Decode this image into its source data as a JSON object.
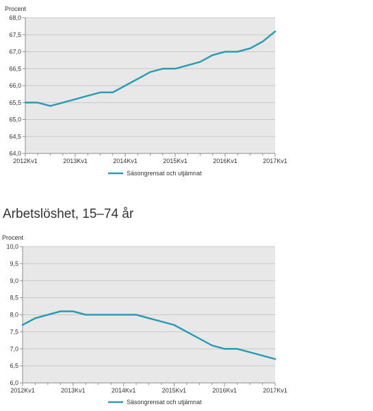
{
  "section2_title": "Arbetslöshet, 15–74 år",
  "colors": {
    "line": "#2a9bb5",
    "plot_bg": "#e8e8e8",
    "grid": "#c8c8c8",
    "axis": "#8c8c8c"
  },
  "chart_data": [
    {
      "type": "line",
      "ylabel": "Procent",
      "ylim": [
        64.0,
        68.0
      ],
      "yticks": [
        "64,0",
        "64,5",
        "65,0",
        "65,5",
        "66,0",
        "66,5",
        "67,0",
        "67,5",
        "68,0"
      ],
      "xticks": [
        "2012Kv1",
        "2013Kv1",
        "2014Kv1",
        "2015Kv1",
        "2016Kv1",
        "2017Kv1"
      ],
      "x": [
        "2012Kv1",
        "2012Kv2",
        "2012Kv3",
        "2012Kv4",
        "2013Kv1",
        "2013Kv2",
        "2013Kv3",
        "2013Kv4",
        "2014Kv1",
        "2014Kv2",
        "2014Kv3",
        "2014Kv4",
        "2015Kv1",
        "2015Kv2",
        "2015Kv3",
        "2015Kv4",
        "2016Kv1",
        "2016Kv2",
        "2016Kv3",
        "2016Kv4",
        "2017Kv1"
      ],
      "grid": true,
      "legend_position": "bottom",
      "series": [
        {
          "name": "Säsongrensat och utjämnat",
          "values": [
            65.5,
            65.5,
            65.4,
            65.5,
            65.6,
            65.7,
            65.8,
            65.8,
            66.0,
            66.2,
            66.4,
            66.5,
            66.5,
            66.6,
            66.7,
            66.9,
            67.0,
            67.0,
            67.1,
            67.3,
            67.6
          ]
        }
      ]
    },
    {
      "type": "line",
      "ylabel": "Procent",
      "ylim": [
        6.0,
        10.0
      ],
      "yticks": [
        "6,0",
        "6,5",
        "7,0",
        "7,5",
        "8,0",
        "8,5",
        "9,0",
        "9,5",
        "10,0"
      ],
      "xticks": [
        "2012Kv1",
        "2013Kv1",
        "2014Kv1",
        "2015Kv1",
        "2016Kv1",
        "2017Kv1"
      ],
      "x": [
        "2012Kv1",
        "2012Kv2",
        "2012Kv3",
        "2012Kv4",
        "2013Kv1",
        "2013Kv2",
        "2013Kv3",
        "2013Kv4",
        "2014Kv1",
        "2014Kv2",
        "2014Kv3",
        "2014Kv4",
        "2015Kv1",
        "2015Kv2",
        "2015Kv3",
        "2015Kv4",
        "2016Kv1",
        "2016Kv2",
        "2016Kv3",
        "2016Kv4",
        "2017Kv1"
      ],
      "grid": true,
      "legend_position": "bottom",
      "series": [
        {
          "name": "Säsongrensat och utjämnat",
          "values": [
            7.7,
            7.9,
            8.0,
            8.1,
            8.1,
            8.0,
            8.0,
            8.0,
            8.0,
            8.0,
            7.9,
            7.8,
            7.7,
            7.5,
            7.3,
            7.1,
            7.0,
            7.0,
            6.9,
            6.8,
            6.7
          ]
        }
      ]
    }
  ]
}
